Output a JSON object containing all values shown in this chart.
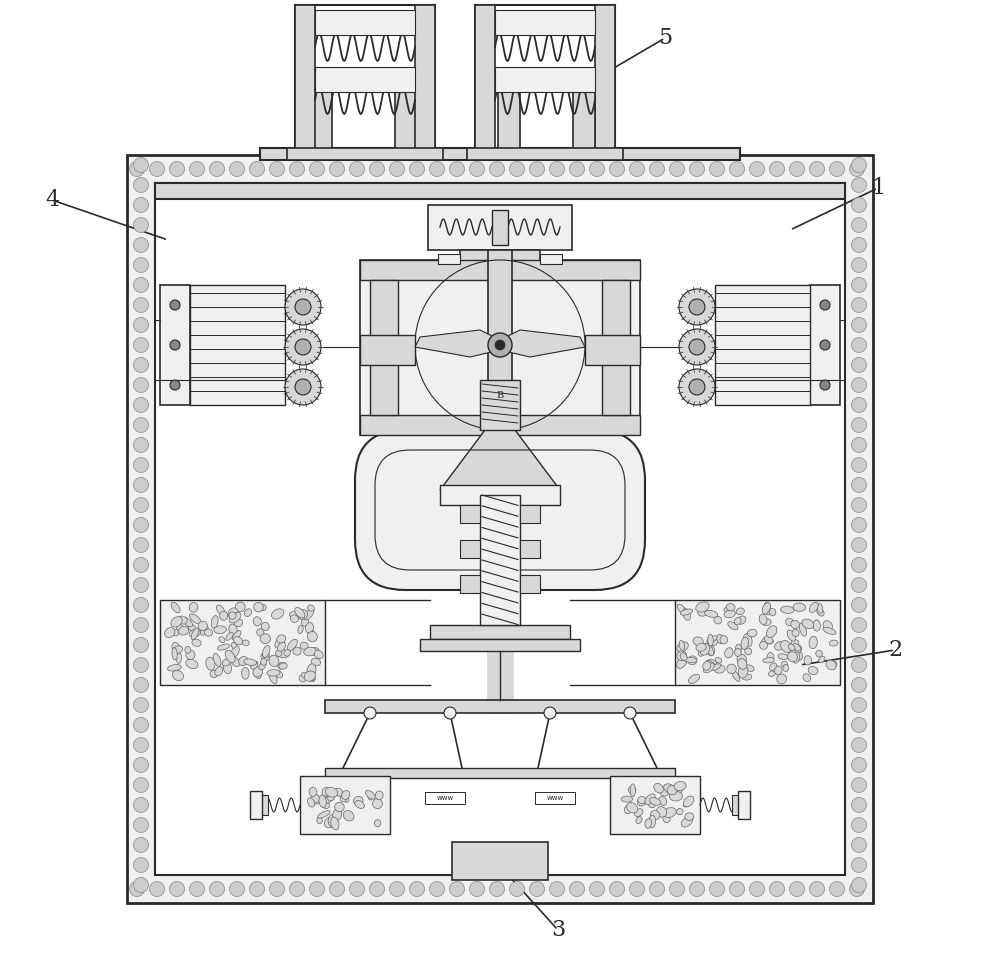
{
  "bg_color": "#ffffff",
  "lc": "#2a2a2a",
  "lc_light": "#666666",
  "fc_white": "#ffffff",
  "fc_light": "#f0f0f0",
  "fc_med": "#d8d8d8",
  "fc_dark": "#b0b0b0",
  "dot_fc": "#cccccc",
  "annotations": [
    [
      "5",
      665,
      38,
      590,
      82
    ],
    [
      "1",
      878,
      188,
      790,
      230
    ],
    [
      "4",
      52,
      200,
      168,
      240
    ],
    [
      "2",
      895,
      650,
      800,
      665
    ],
    [
      "3",
      558,
      930,
      490,
      855
    ]
  ]
}
